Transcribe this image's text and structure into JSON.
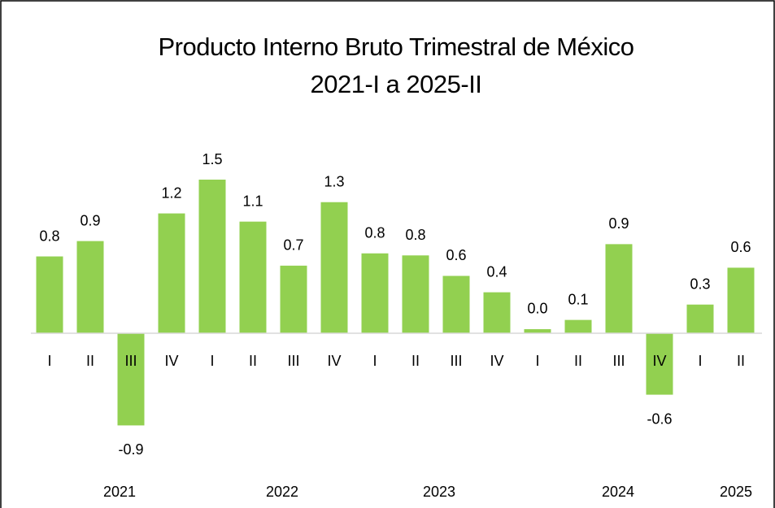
{
  "chart_data": {
    "type": "bar",
    "title": "Producto Interno Bruto Trimestral de México",
    "subtitle": "2021-I a 2025-II",
    "categories": [
      "I",
      "II",
      "III",
      "IV",
      "I",
      "II",
      "III",
      "IV",
      "I",
      "II",
      "III",
      "IV",
      "I",
      "II",
      "III",
      "IV",
      "I",
      "II"
    ],
    "years": [
      "2021",
      "2022",
      "2023",
      "2024",
      "2025"
    ],
    "values": [
      0.75,
      0.9,
      -0.9,
      1.17,
      1.5,
      1.09,
      0.66,
      1.28,
      0.78,
      0.76,
      0.56,
      0.4,
      0.04,
      0.13,
      0.87,
      -0.6,
      0.28,
      0.64
    ],
    "value_labels": [
      "0.8",
      "0.9",
      "-0.9",
      "1.2",
      "1.5",
      "1.1",
      "0.7",
      "1.3",
      "0.8",
      "0.8",
      "0.6",
      "0.4",
      "0.0",
      "0.1",
      "0.9",
      "-0.6",
      "0.3",
      "0.6"
    ],
    "color": "#92d050"
  }
}
